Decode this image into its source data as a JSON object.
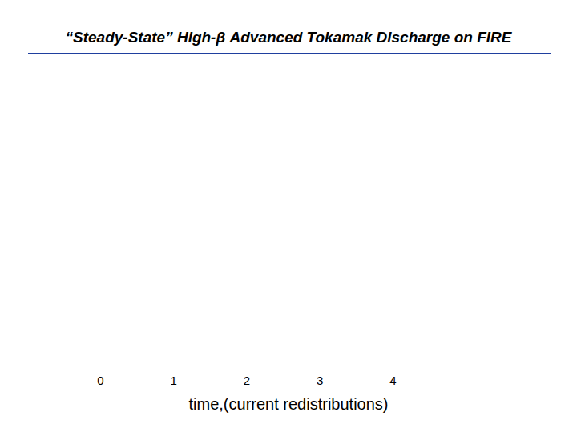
{
  "chart_data": {
    "type": "line",
    "title": "“Steady-State” High-β Advanced Tokamak Discharge on FIRE",
    "xlabel": "time,(current redistributions)",
    "xlim": [
      0,
      4
    ],
    "xticks": [
      0,
      1,
      2,
      3,
      4
    ],
    "tick_labels": "x",
    "series": []
  }
}
